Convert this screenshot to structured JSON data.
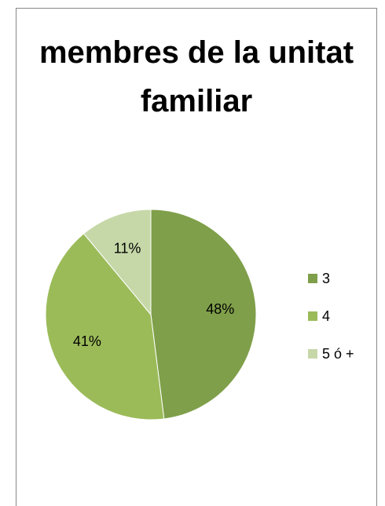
{
  "chart_data": {
    "type": "pie",
    "title": "membres de la unitat familiar",
    "categories": [
      "3",
      "4",
      "5 ó +"
    ],
    "values": [
      48,
      41,
      11
    ],
    "value_labels": [
      "48%",
      "41%",
      "11%"
    ],
    "colors": [
      "#7f9f4a",
      "#9bbb59",
      "#c6d8a8"
    ],
    "legend": "right"
  }
}
